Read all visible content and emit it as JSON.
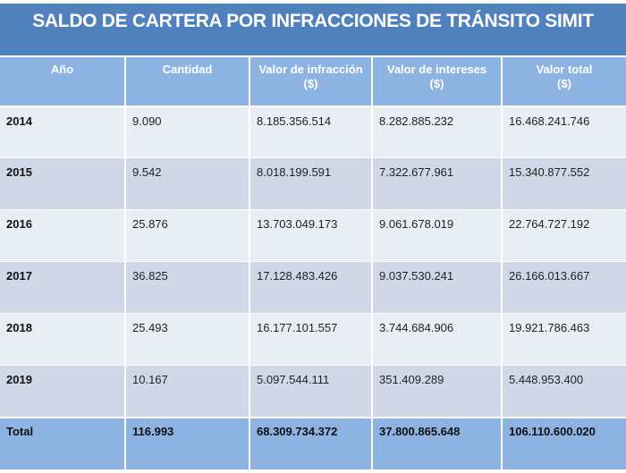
{
  "title": "SALDO DE CARTERA POR INFRACCIONES DE TRÁNSITO SIMIT",
  "colors": {
    "title_bg": "#4f81bd",
    "header_bg": "#8db3e2",
    "row_light": "#e9edf4",
    "row_dark": "#d0d8e8",
    "total_bg": "#8db3e2"
  },
  "table": {
    "headers": [
      {
        "line1": "Año",
        "line2": ""
      },
      {
        "line1": "Cantidad",
        "line2": ""
      },
      {
        "line1": "Valor de infracción",
        "line2": "($)"
      },
      {
        "line1": "Valor de intereses",
        "line2": "($)"
      },
      {
        "line1": "Valor total",
        "line2": "($)"
      }
    ],
    "rows": [
      {
        "year": "2014",
        "cantidad": "9.090",
        "infraccion": "8.185.356.514",
        "intereses": "8.282.885.232",
        "total": "16.468.241.746"
      },
      {
        "year": "2015",
        "cantidad": "9.542",
        "infraccion": "8.018.199.591",
        "intereses": "7.322.677.961",
        "total": "15.340.877.552"
      },
      {
        "year": "2016",
        "cantidad": "25.876",
        "infraccion": "13.703.049.173",
        "intereses": "9.061.678.019",
        "total": "22.764.727.192"
      },
      {
        "year": "2017",
        "cantidad": "36.825",
        "infraccion": "17.128.483.426",
        "intereses": "9.037.530.241",
        "total": "26.166.013.667"
      },
      {
        "year": "2018",
        "cantidad": "25.493",
        "infraccion": "16.177.101.557",
        "intereses": "3.744.684.906",
        "total": "19.921.786.463"
      },
      {
        "year": "2019",
        "cantidad": "10.167",
        "infraccion": "5.097.544.111",
        "intereses": "351.409.289",
        "total": "5.448.953.400"
      }
    ],
    "totals": {
      "label": "Total",
      "cantidad": "116.993",
      "infraccion": "68.309.734.372",
      "intereses": "37.800.865.648",
      "total": "106.110.600.020"
    }
  }
}
